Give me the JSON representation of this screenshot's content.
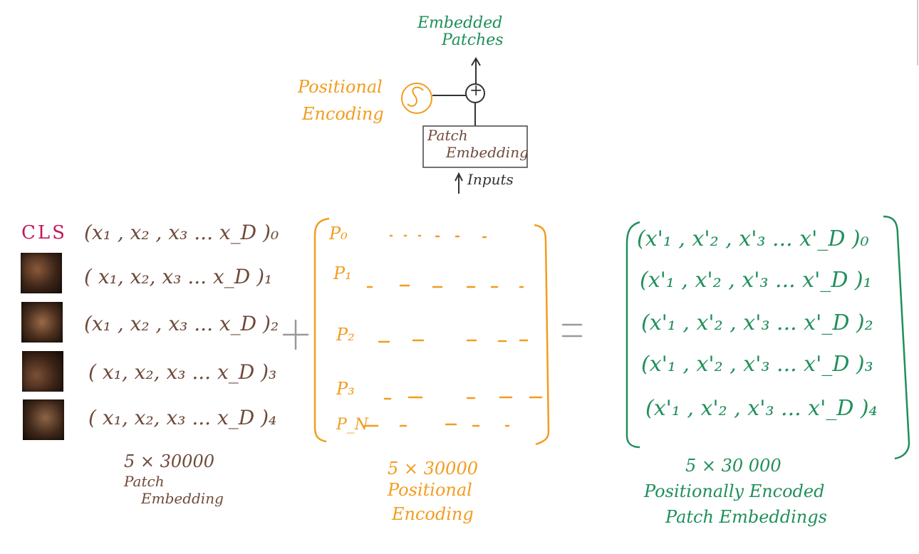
{
  "top_diagram": {
    "output_label_line1": "Embedded",
    "output_label_line2": "Patches",
    "positional_label_line1": "Positional",
    "positional_label_line2": "Encoding",
    "box_label_line1": "Patch",
    "box_label_line2": "Embedding",
    "input_label": "Inputs",
    "plus_symbol": "+"
  },
  "patch_embedding": {
    "cls_label": "CLS",
    "rows": [
      "(x₁ , x₂ , x₃ ... x_D )₀",
      "( x₁, x₂, x₃ ... x_D )₁",
      "(x₁ , x₂ , x₃ ... x_D )₂",
      "( x₁, x₂, x₃ ... x_D )₃",
      "( x₁, x₂, x₃ ... x_D )₄"
    ],
    "size": "5 × 30000",
    "caption_line1": "Patch",
    "caption_line2": "Embedding"
  },
  "plus_sign": "+",
  "equals_sign": "=",
  "positional_encoding": {
    "rows": [
      "P₀",
      "P₁",
      "P₂",
      "P₃",
      "P_N"
    ],
    "size": "5 × 30000",
    "caption_line1": "Positional",
    "caption_line2": "Encoding"
  },
  "result": {
    "rows": [
      "(x'₁ , x'₂ , x'₃ ... x'_D )₀",
      "(x'₁ , x'₂ , x'₃ ... x'_D )₁",
      "(x'₁ , x'₂ , x'₃ ... x'_D )₂",
      "(x'₁ , x'₂ , x'₃ ... x'_D )₃",
      "(x'₁ , x'₂ , x'₃ ... x'_D )₄"
    ],
    "size": "5 × 30 000",
    "caption_line1": "Positionally Encoded",
    "caption_line2": "Patch Embeddings"
  },
  "colors": {
    "green": "#1f8f5a",
    "orange": "#f39c1f",
    "brown": "#6e4a3a",
    "red": "#c2185b"
  }
}
